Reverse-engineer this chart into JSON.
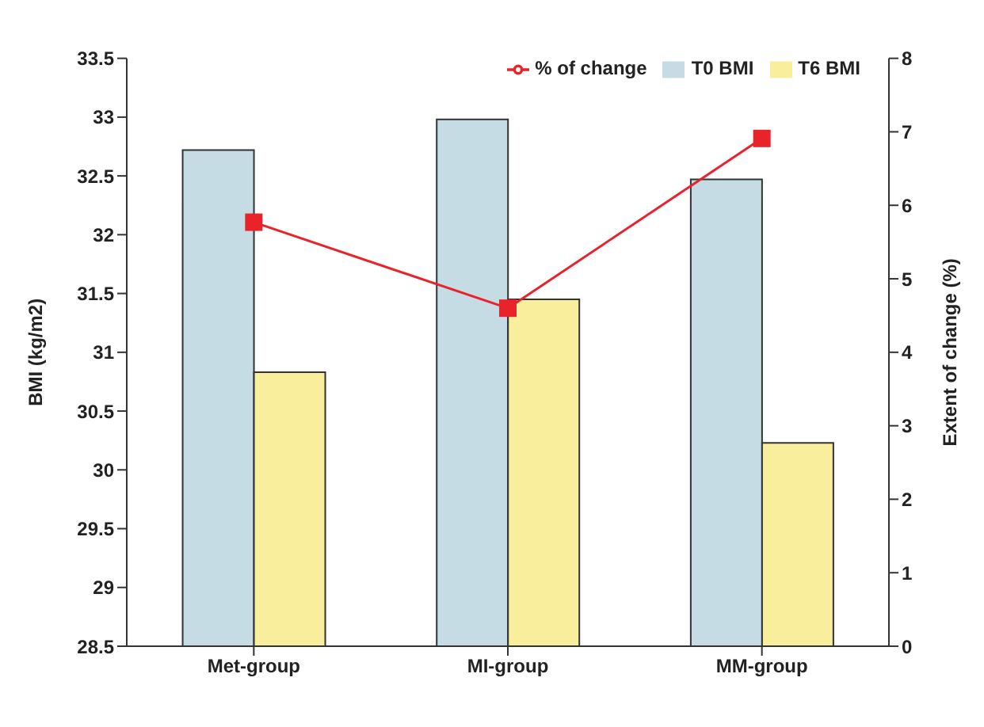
{
  "chart_data": {
    "type": "bar",
    "categories": [
      "Met-group",
      "MI-group",
      "MM-group"
    ],
    "ylabel": "BMI (kg/m2)",
    "y2label": "Extent of change (%)",
    "ylim": [
      28.5,
      33.5
    ],
    "yticks": [
      28.5,
      29,
      29.5,
      30,
      30.5,
      31,
      31.5,
      32,
      32.5,
      33,
      33.5
    ],
    "y2lim": [
      0,
      8
    ],
    "y2ticks": [
      0,
      1,
      2,
      3,
      4,
      5,
      6,
      7,
      8
    ],
    "legend": "top right",
    "grid": false,
    "series": [
      {
        "name": "T0 BMI",
        "color": "#c5dce4",
        "values": [
          32.72,
          32.98,
          32.47
        ]
      },
      {
        "name": "T6 BMI",
        "color": "#f8ee9c",
        "values": [
          30.83,
          31.45,
          30.23
        ]
      },
      {
        "name": "% of change",
        "type": "line",
        "axis": "y2",
        "color": "#e8232a",
        "marker": "square",
        "values": [
          5.77,
          4.6,
          6.91
        ]
      }
    ]
  }
}
